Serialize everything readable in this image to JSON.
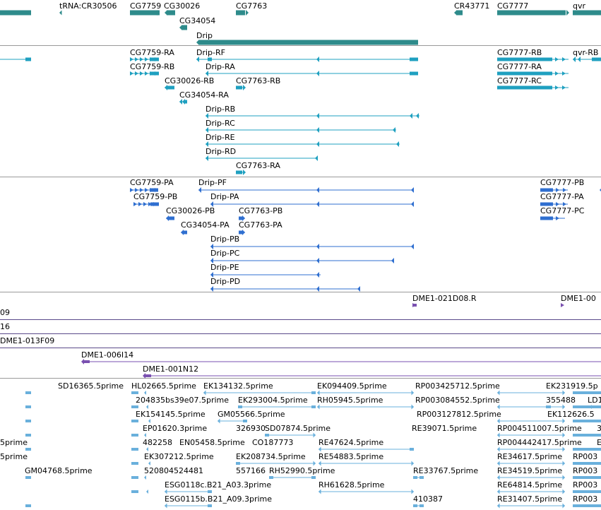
{
  "colors": {
    "gene": "#2e8b8b",
    "transcript": "#1fa0c0",
    "protein": "#2f6fd0",
    "clone_end": "#7a50b0",
    "est": "#6ab0dc"
  },
  "genes": [
    {
      "id": "tRNA:CR30506"
    },
    {
      "id": "CG7759"
    },
    {
      "id": "CG30026"
    },
    {
      "id": "CG34054"
    },
    {
      "id": "CG7763"
    },
    {
      "id": "Drip"
    },
    {
      "id": "CR43771"
    },
    {
      "id": "CG7777"
    },
    {
      "id": "qvr"
    }
  ],
  "transcripts": [
    "CG7759-RA",
    "CG7759-RB",
    "CG30026-RB",
    "CG34054-RA",
    "Drip-RF",
    "Drip-RA",
    "CG7763-RB",
    "Drip-RB",
    "Drip-RC",
    "Drip-RE",
    "Drip-RD",
    "CG7763-RA",
    "CG7777-RB",
    "CG7777-RA",
    "CG7777-RC",
    "qvr-RB"
  ],
  "proteins": [
    "CG7759-PA",
    "CG7759-PB",
    "CG30026-PB",
    "CG34054-PA",
    "Drip-PF",
    "Drip-PA",
    "CG7763-PB",
    "CG7763-PA",
    "Drip-PB",
    "Drip-PC",
    "Drip-PE",
    "Drip-PD",
    "CG7777-PB",
    "CG7777-PA",
    "CG7777-PC"
  ],
  "clone_ends": [
    "DME1-021D08.R",
    "DME1-00",
    "09",
    "16",
    "DME1-013F09",
    "DME1-006I14",
    "DME1-001N12"
  ],
  "ests": [
    "SD16365.5prime",
    "HL02665.5prime",
    "EK134132.5prime",
    "EK094409.5prime",
    "RP003425712.5prime",
    "EK231919.5p",
    "204835bs39e07.5prime",
    "EK293004.5prime",
    "RH05945.5prime",
    "RP003084552.5prime",
    "355488",
    "LD1",
    "EK154145.5prime",
    "GM05566.5prime",
    "RP003127812.5prime",
    "EK112626.5",
    "EP01620.3prime",
    "326930",
    "SD07874.5prime",
    "RE39071.5prime",
    "RP004511007.5prime",
    "3",
    "482258",
    "EN05458.5prime",
    "CO187773",
    "RE47624.5prime",
    "RP004442417.5prime",
    "E",
    "5prime",
    "5prime",
    "EK307212.5prime",
    "EK208734.5prime",
    "RE54883.5prime",
    "RE34617.5prime",
    "RP003",
    "GM04768.5prime",
    "520804524481",
    "557166",
    "RH52990.5prime",
    "RE33767.5prime",
    "RE34519.5prime",
    "RP003",
    "ESG0118c.B21_A03.3prime",
    "RH61628.5prime",
    "RE64814.5prime",
    "RP003",
    "ESG0115b.B21_A09.3prime",
    "410387",
    "RE31407.5prime",
    "RP003"
  ]
}
